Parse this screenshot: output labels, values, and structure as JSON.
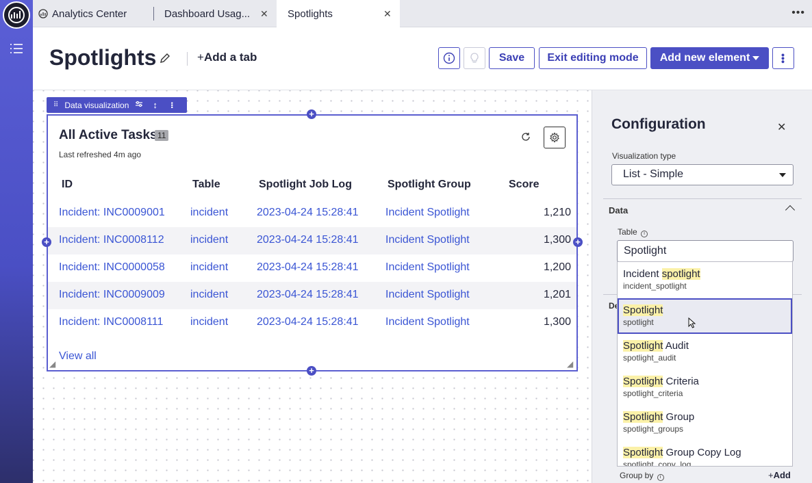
{
  "tabs": [
    {
      "label": "Analytics Center"
    },
    {
      "label": "Dashboard Usag..."
    },
    {
      "label": "Spotlights"
    }
  ],
  "header": {
    "title": "Spotlights",
    "add_tab": "Add a tab",
    "save": "Save",
    "exit_edit": "Exit editing mode",
    "add_element": "Add new element"
  },
  "toolbar": {
    "label": "Data visualization"
  },
  "card": {
    "title": "All Active Tasks",
    "count": "11",
    "refreshed": "Last refreshed 4m ago",
    "columns": [
      "ID",
      "Table",
      "Spotlight Job Log",
      "Spotlight Group",
      "Score"
    ],
    "rows": [
      [
        "Incident: INC0009001",
        "incident",
        "2023-04-24 15:28:41",
        "Incident Spotlight",
        "1,210"
      ],
      [
        "Incident: INC0008112",
        "incident",
        "2023-04-24 15:28:41",
        "Incident Spotlight",
        "1,300"
      ],
      [
        "Incident: INC0000058",
        "incident",
        "2023-04-24 15:28:41",
        "Incident Spotlight",
        "1,200"
      ],
      [
        "Incident: INC0009009",
        "incident",
        "2023-04-24 15:28:41",
        "Incident Spotlight",
        "1,201"
      ],
      [
        "Incident: INC0008111",
        "incident",
        "2023-04-24 15:28:41",
        "Incident Spotlight",
        "1,300"
      ]
    ],
    "view_all": "View all"
  },
  "config": {
    "title": "Configuration",
    "viz_type_label": "Visualization type",
    "viz_type_value": "List - Simple",
    "section_data": "Data",
    "table_label": "Table",
    "table_value": "Spotlight",
    "options": [
      {
        "hl": "",
        "rest": "Incident ",
        "hl2": "spotlight",
        "sub": "incident_spotlight"
      },
      {
        "hl": "Spotlight",
        "rest": "",
        "hl2": "",
        "sub": "spotlight"
      },
      {
        "hl": "Spotlight",
        "rest": " Audit",
        "hl2": "",
        "sub": "spotlight_audit"
      },
      {
        "hl": "Spotlight",
        "rest": " Criteria",
        "hl2": "",
        "sub": "spotlight_criteria"
      },
      {
        "hl": "Spotlight",
        "rest": " Group",
        "hl2": "",
        "sub": "spotlight_groups"
      },
      {
        "hl": "Spotlight",
        "rest": " Group Copy Log",
        "hl2": "",
        "sub": "spotlight_copy_log"
      }
    ],
    "section_peek": "De",
    "group_by": "Group by",
    "add": "Add"
  },
  "colors": {
    "accent": "#4b4fc4",
    "link": "#3a55d4",
    "highlight": "#fbf1a8"
  }
}
